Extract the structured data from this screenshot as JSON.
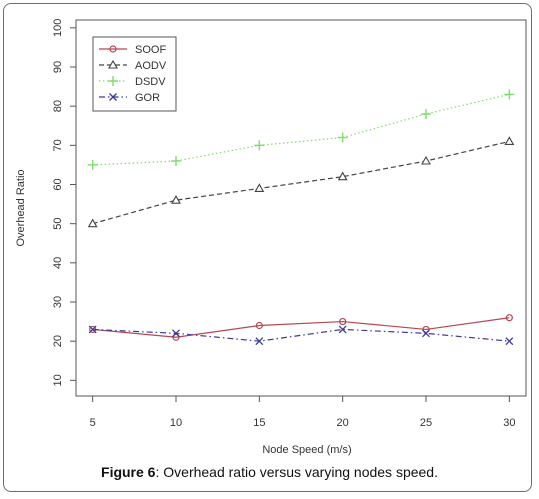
{
  "caption": {
    "label": "Figure 6",
    "text": ": Overhead ratio versus varying nodes speed."
  },
  "chart_data": {
    "type": "line",
    "xlabel": "Node Speed (m/s)",
    "ylabel": "Overhead Ratio",
    "x": [
      5,
      10,
      15,
      20,
      25,
      30
    ],
    "xlim": [
      4,
      31
    ],
    "ylim": [
      6,
      102
    ],
    "yticks": [
      10,
      20,
      30,
      40,
      50,
      60,
      70,
      80,
      90,
      100
    ],
    "grid": false,
    "legend_position": "top-left",
    "series": [
      {
        "name": "SOOF",
        "values": [
          23,
          21,
          24,
          25,
          23,
          26
        ],
        "color": "#b5474f",
        "marker": "circle",
        "dash": "solid"
      },
      {
        "name": "AODV",
        "values": [
          50,
          56,
          59,
          62,
          66,
          71
        ],
        "color": "#444444",
        "marker": "triangle",
        "dash": "dashed"
      },
      {
        "name": "DSDV",
        "values": [
          65,
          66,
          70,
          72,
          78,
          83
        ],
        "color": "#7fdc6e",
        "marker": "plus",
        "dash": "dotted"
      },
      {
        "name": "GOR",
        "values": [
          23,
          22,
          20,
          23,
          22,
          20
        ],
        "color": "#3a3a9a",
        "marker": "cross",
        "dash": "dashdot"
      }
    ]
  }
}
